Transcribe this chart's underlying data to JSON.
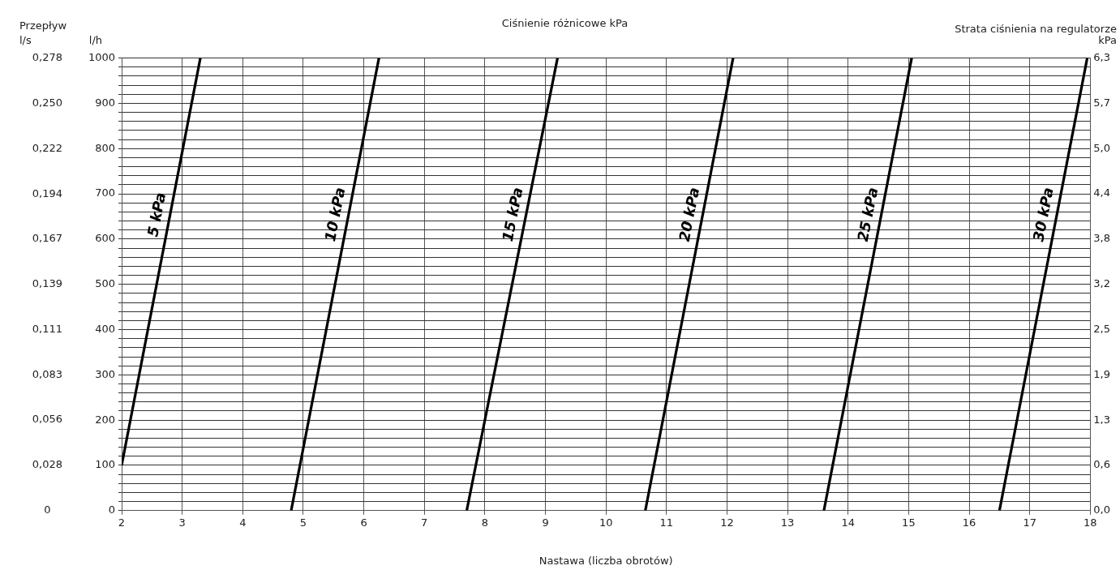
{
  "chart_data": {
    "type": "line",
    "title": "Ciśnienie różnicowe kPa",
    "xlabel": "Nastawa (liczba obrotów)",
    "ylabel": "l/h",
    "y3label": "l/s",
    "y2label": "Strata ciśnienia na regulatorze kPa",
    "annotations": [
      "Przepływ"
    ],
    "xlim": [
      2,
      18
    ],
    "xticks": [
      2,
      3,
      4,
      5,
      6,
      7,
      8,
      9,
      10,
      11,
      12,
      13,
      14,
      15,
      16,
      17,
      18
    ],
    "ylim": [
      0,
      1000
    ],
    "yticks": [
      0,
      {
        "value": 20,
        "label": null
      },
      {
        "value": 40,
        "label": null
      },
      {
        "value": 60,
        "label": null
      },
      {
        "value": 80,
        "label": null
      },
      100,
      {
        "value": 120,
        "label": null
      },
      {
        "value": 140,
        "label": null
      },
      {
        "value": 160,
        "label": null
      },
      {
        "value": 180,
        "label": null
      },
      200,
      {
        "value": 220,
        "label": null
      },
      {
        "value": 240,
        "label": null
      },
      {
        "value": 260,
        "label": null
      },
      {
        "value": 280,
        "label": null
      },
      300,
      {
        "value": 320,
        "label": null
      },
      {
        "value": 340,
        "label": null
      },
      {
        "value": 360,
        "label": null
      },
      {
        "value": 380,
        "label": null
      },
      400,
      {
        "value": 420,
        "label": null
      },
      {
        "value": 440,
        "label": null
      },
      {
        "value": 460,
        "label": null
      },
      {
        "value": 480,
        "label": null
      },
      500,
      {
        "value": 520,
        "label": null
      },
      {
        "value": 540,
        "label": null
      },
      {
        "value": 560,
        "label": null
      },
      {
        "value": 580,
        "label": null
      },
      600,
      {
        "value": 620,
        "label": null
      },
      {
        "value": 640,
        "label": null
      },
      {
        "value": 660,
        "label": null
      },
      {
        "value": 680,
        "label": null
      },
      700,
      {
        "value": 720,
        "label": null
      },
      {
        "value": 740,
        "label": null
      },
      {
        "value": 760,
        "label": null
      },
      {
        "value": 780,
        "label": null
      },
      800,
      {
        "value": 820,
        "label": null
      },
      {
        "value": 840,
        "label": null
      },
      {
        "value": 860,
        "label": null
      },
      {
        "value": 880,
        "label": null
      },
      900,
      {
        "value": 920,
        "label": null
      },
      {
        "value": 940,
        "label": null
      },
      {
        "value": 960,
        "label": null
      },
      {
        "value": 980,
        "label": null
      },
      1000
    ],
    "y3lim": [
      0,
      0.2778
    ],
    "y3ticks": [
      {
        "value": 0,
        "label": "0"
      },
      {
        "value": 0.0278,
        "label": "0,028"
      },
      {
        "value": 0.0556,
        "label": "0,056"
      },
      {
        "value": 0.0833,
        "label": "0,083"
      },
      {
        "value": 0.1111,
        "label": "0,111"
      },
      {
        "value": 0.1389,
        "label": "0,139"
      },
      {
        "value": 0.1667,
        "label": "0,167"
      },
      {
        "value": 0.1944,
        "label": "0,194"
      },
      {
        "value": 0.2222,
        "label": "0,222"
      },
      {
        "value": 0.25,
        "label": "0,250"
      },
      {
        "value": 0.2778,
        "label": "0,278"
      }
    ],
    "y2lim": [
      0,
      6.3
    ],
    "y2ticks": [
      {
        "value": 0,
        "label": "0,0"
      },
      {
        "value": 0.63,
        "label": "0,6"
      },
      {
        "value": 1.26,
        "label": "1,3"
      },
      {
        "value": 1.89,
        "label": "1,9"
      },
      {
        "value": 2.52,
        "label": "2,5"
      },
      {
        "value": 3.15,
        "label": "3,2"
      },
      {
        "value": 3.78,
        "label": "3,8"
      },
      {
        "value": 4.41,
        "label": "4,4"
      },
      {
        "value": 5.04,
        "label": "5,0"
      },
      {
        "value": 5.67,
        "label": "5,7"
      },
      {
        "value": 6.3,
        "label": "6,3"
      }
    ],
    "grid": true,
    "legend": false,
    "marker": "none",
    "line_style": "solid",
    "series": [
      {
        "name": "5 kPa",
        "color": "#000000",
        "x": [
          2,
          3.3
        ],
        "values": [
          100,
          1000
        ]
      },
      {
        "name": "10 kPa",
        "color": "#000000",
        "x": [
          4.8,
          6.25
        ],
        "values": [
          0,
          1000
        ]
      },
      {
        "name": "15 kPa",
        "color": "#000000",
        "x": [
          7.7,
          9.2
        ],
        "values": [
          0,
          1000
        ]
      },
      {
        "name": "20 kPa",
        "color": "#000000",
        "x": [
          10.65,
          12.1
        ],
        "values": [
          0,
          1000
        ]
      },
      {
        "name": "25 kPa",
        "color": "#000000",
        "x": [
          13.6,
          15.05
        ],
        "values": [
          0,
          1000
        ]
      },
      {
        "name": "30 kPa",
        "color": "#000000",
        "x": [
          16.5,
          17.95
        ],
        "values": [
          0,
          1000
        ]
      }
    ]
  }
}
